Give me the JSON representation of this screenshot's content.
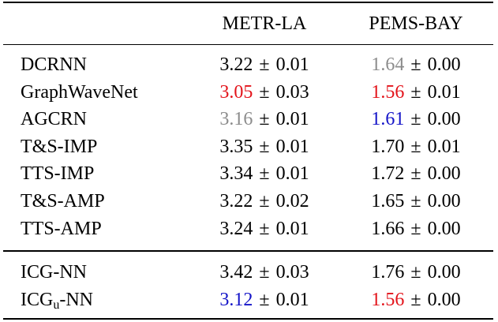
{
  "table": {
    "columns": [
      "METR-LA",
      "PEMS-BAY"
    ],
    "separator": "±",
    "groups": [
      [
        {
          "model": "DCRNN",
          "cells": [
            {
              "mean": "3.22",
              "std": "0.01"
            },
            {
              "mean": "1.64",
              "std": "0.00",
              "color": "#8c8c8c"
            }
          ]
        },
        {
          "model": "GraphWaveNet",
          "cells": [
            {
              "mean": "3.05",
              "std": "0.03",
              "color": "#e3141b"
            },
            {
              "mean": "1.56",
              "std": "0.01",
              "color": "#e3141b"
            }
          ]
        },
        {
          "model": "AGCRN",
          "cells": [
            {
              "mean": "3.16",
              "std": "0.01",
              "color": "#8c8c8c"
            },
            {
              "mean": "1.61",
              "std": "0.00",
              "color": "#1414c8"
            }
          ]
        },
        {
          "model": "T&S-IMP",
          "cells": [
            {
              "mean": "3.35",
              "std": "0.01"
            },
            {
              "mean": "1.70",
              "std": "0.01"
            }
          ]
        },
        {
          "model": "TTS-IMP",
          "cells": [
            {
              "mean": "3.34",
              "std": "0.01"
            },
            {
              "mean": "1.72",
              "std": "0.00"
            }
          ]
        },
        {
          "model": "T&S-AMP",
          "cells": [
            {
              "mean": "3.22",
              "std": "0.02"
            },
            {
              "mean": "1.65",
              "std": "0.00"
            }
          ]
        },
        {
          "model": "TTS-AMP",
          "cells": [
            {
              "mean": "3.24",
              "std": "0.01"
            },
            {
              "mean": "1.66",
              "std": "0.00"
            }
          ]
        }
      ],
      [
        {
          "model": "ICG-NN",
          "cells": [
            {
              "mean": "3.42",
              "std": "0.03"
            },
            {
              "mean": "1.76",
              "std": "0.00"
            }
          ]
        },
        {
          "model": "ICG",
          "model_sub": "u",
          "model_suffix": "-NN",
          "cells": [
            {
              "mean": "3.12",
              "std": "0.01",
              "color": "#1414c8"
            },
            {
              "mean": "1.56",
              "std": "0.00",
              "color": "#e3141b"
            }
          ]
        }
      ]
    ]
  }
}
